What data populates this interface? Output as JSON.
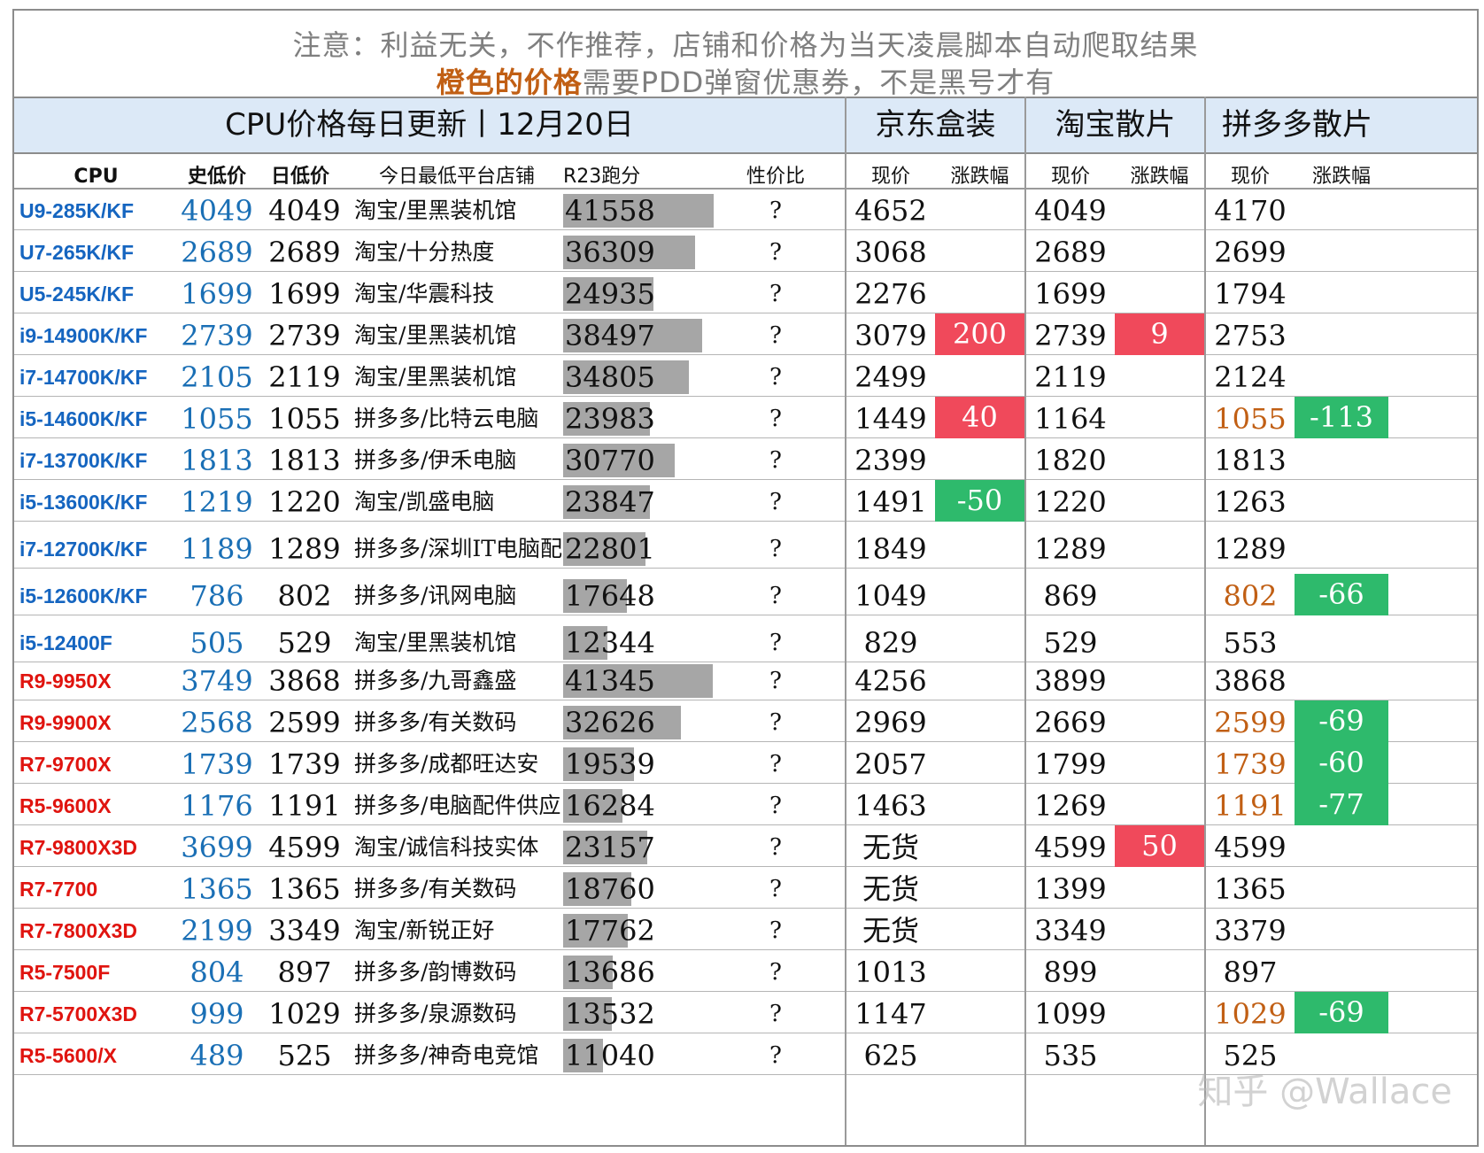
{
  "notice": {
    "line1": "注意：利益无关，不作推荐，店铺和价格为当天凌晨脚本自动爬取结果",
    "line2_orange": "橙色的价格",
    "line2_rest": "需要PDD弹窗优惠券，不是黑号才有"
  },
  "header": {
    "title": "CPU价格每日更新丨12月20日",
    "jd": "京东盒装",
    "taobao": "淘宝散片",
    "pdd": "拼多多散片"
  },
  "columns": {
    "cpu": "CPU",
    "hist_low": "史低价",
    "day_low": "日低价",
    "shop": "今日最低平台店铺",
    "r23": "R23跑分",
    "value": "性价比",
    "price": "现价",
    "change": "涨跌幅"
  },
  "colors": {
    "intel_blue": "#1565c0",
    "amd_red": "#e0140f",
    "hist_blue": "#1a6fb5",
    "up_red": "#f0495b",
    "down_green": "#2eba6c",
    "coupon_orange": "#c15f14",
    "header_band": "#dce9f7",
    "bar_gray": "#a6a6a6"
  },
  "r23_bar_max": 41558,
  "rows": [
    {
      "cpu": "U9-285K/KF",
      "brand": "intel",
      "hist": "4049",
      "day": "4049",
      "shop": "淘宝/里黑装机馆",
      "r23": "41558",
      "value": "?",
      "jd": "4652",
      "jd_chg": "",
      "tb": "4049",
      "tb_chg": "",
      "pdd": "4170",
      "pdd_orange": false,
      "pdd_chg": ""
    },
    {
      "cpu": "U7-265K/KF",
      "brand": "intel",
      "hist": "2689",
      "day": "2689",
      "shop": "淘宝/十分热度",
      "r23": "36309",
      "value": "?",
      "jd": "3068",
      "jd_chg": "",
      "tb": "2689",
      "tb_chg": "",
      "pdd": "2699",
      "pdd_orange": false,
      "pdd_chg": ""
    },
    {
      "cpu": "U5-245K/KF",
      "brand": "intel",
      "hist": "1699",
      "day": "1699",
      "shop": "淘宝/华震科技",
      "r23": "24935",
      "value": "?",
      "jd": "2276",
      "jd_chg": "",
      "tb": "1699",
      "tb_chg": "",
      "pdd": "1794",
      "pdd_orange": false,
      "pdd_chg": ""
    },
    {
      "cpu": "i9-14900K/KF",
      "brand": "intel",
      "hist": "2739",
      "day": "2739",
      "shop": "淘宝/里黑装机馆",
      "r23": "38497",
      "value": "?",
      "jd": "3079",
      "jd_chg": "200",
      "tb": "2739",
      "tb_chg": "9",
      "pdd": "2753",
      "pdd_orange": false,
      "pdd_chg": ""
    },
    {
      "cpu": "i7-14700K/KF",
      "brand": "intel",
      "hist": "2105",
      "day": "2119",
      "shop": "淘宝/里黑装机馆",
      "r23": "34805",
      "value": "?",
      "jd": "2499",
      "jd_chg": "",
      "tb": "2119",
      "tb_chg": "",
      "pdd": "2124",
      "pdd_orange": false,
      "pdd_chg": ""
    },
    {
      "cpu": "i5-14600K/KF",
      "brand": "intel",
      "hist": "1055",
      "day": "1055",
      "shop": "拼多多/比特云电脑",
      "r23": "23983",
      "value": "?",
      "jd": "1449",
      "jd_chg": "40",
      "tb": "1164",
      "tb_chg": "",
      "pdd": "1055",
      "pdd_orange": true,
      "pdd_chg": "-113"
    },
    {
      "cpu": "i7-13700K/KF",
      "brand": "intel",
      "hist": "1813",
      "day": "1813",
      "shop": "拼多多/伊禾电脑",
      "r23": "30770",
      "value": "?",
      "jd": "2399",
      "jd_chg": "",
      "tb": "1820",
      "tb_chg": "",
      "pdd": "1813",
      "pdd_orange": false,
      "pdd_chg": ""
    },
    {
      "cpu": "i5-13600K/KF",
      "brand": "intel",
      "hist": "1219",
      "day": "1220",
      "shop": "淘宝/凯盛电脑",
      "r23": "23847",
      "value": "?",
      "jd": "1491",
      "jd_chg": "-50",
      "tb": "1220",
      "tb_chg": "",
      "pdd": "1263",
      "pdd_orange": false,
      "pdd_chg": ""
    },
    {
      "cpu": "i7-12700K/KF",
      "brand": "intel",
      "hist": "1189",
      "day": "1289",
      "shop": "拼多多/深圳IT电脑配",
      "r23": "22801",
      "value": "?",
      "jd": "1849",
      "jd_chg": "",
      "tb": "1289",
      "tb_chg": "",
      "pdd": "1289",
      "pdd_orange": false,
      "pdd_chg": ""
    },
    {
      "cpu": "i5-12600K/KF",
      "brand": "intel",
      "hist": "786",
      "day": "802",
      "shop": "拼多多/讯网电脑",
      "r23": "17648",
      "value": "?",
      "jd": "1049",
      "jd_chg": "",
      "tb": "869",
      "tb_chg": "",
      "pdd": "802",
      "pdd_orange": true,
      "pdd_chg": "-66"
    },
    {
      "cpu": "i5-12400F",
      "brand": "intel",
      "hist": "505",
      "day": "529",
      "shop": "淘宝/里黑装机馆",
      "r23": "12344",
      "value": "?",
      "jd": "829",
      "jd_chg": "",
      "tb": "529",
      "tb_chg": "",
      "pdd": "553",
      "pdd_orange": false,
      "pdd_chg": ""
    },
    {
      "cpu": "R9-9950X",
      "brand": "amd",
      "hist": "3749",
      "day": "3868",
      "shop": "拼多多/九哥鑫盛",
      "r23": "41345",
      "value": "?",
      "jd": "4256",
      "jd_chg": "",
      "tb": "3899",
      "tb_chg": "",
      "pdd": "3868",
      "pdd_orange": false,
      "pdd_chg": ""
    },
    {
      "cpu": "R9-9900X",
      "brand": "amd",
      "hist": "2568",
      "day": "2599",
      "shop": "拼多多/有关数码",
      "r23": "32626",
      "value": "?",
      "jd": "2969",
      "jd_chg": "",
      "tb": "2669",
      "tb_chg": "",
      "pdd": "2599",
      "pdd_orange": true,
      "pdd_chg": "-69"
    },
    {
      "cpu": "R7-9700X",
      "brand": "amd",
      "hist": "1739",
      "day": "1739",
      "shop": "拼多多/成都旺达安",
      "r23": "19539",
      "value": "?",
      "jd": "2057",
      "jd_chg": "",
      "tb": "1799",
      "tb_chg": "",
      "pdd": "1739",
      "pdd_orange": true,
      "pdd_chg": "-60"
    },
    {
      "cpu": "R5-9600X",
      "brand": "amd",
      "hist": "1176",
      "day": "1191",
      "shop": "拼多多/电脑配件供应",
      "r23": "16284",
      "value": "?",
      "jd": "1463",
      "jd_chg": "",
      "tb": "1269",
      "tb_chg": "",
      "pdd": "1191",
      "pdd_orange": true,
      "pdd_chg": "-77"
    },
    {
      "cpu": "R7-9800X3D",
      "brand": "amd",
      "hist": "3699",
      "day": "4599",
      "shop": "淘宝/诚信科技实体",
      "r23": "23157",
      "value": "?",
      "jd": "无货",
      "jd_chg": "",
      "tb": "4599",
      "tb_chg": "50",
      "pdd": "4599",
      "pdd_orange": false,
      "pdd_chg": ""
    },
    {
      "cpu": "R7-7700",
      "brand": "amd",
      "hist": "1365",
      "day": "1365",
      "shop": "拼多多/有关数码",
      "r23": "18760",
      "value": "?",
      "jd": "无货",
      "jd_chg": "",
      "tb": "1399",
      "tb_chg": "",
      "pdd": "1365",
      "pdd_orange": false,
      "pdd_chg": ""
    },
    {
      "cpu": "R7-7800X3D",
      "brand": "amd",
      "hist": "2199",
      "day": "3349",
      "shop": "淘宝/新锐正好",
      "r23": "17762",
      "value": "?",
      "jd": "无货",
      "jd_chg": "",
      "tb": "3349",
      "tb_chg": "",
      "pdd": "3379",
      "pdd_orange": false,
      "pdd_chg": ""
    },
    {
      "cpu": "R5-7500F",
      "brand": "amd",
      "hist": "804",
      "day": "897",
      "shop": "拼多多/韵博数码",
      "r23": "13686",
      "value": "?",
      "jd": "1013",
      "jd_chg": "",
      "tb": "899",
      "tb_chg": "",
      "pdd": "897",
      "pdd_orange": false,
      "pdd_chg": ""
    },
    {
      "cpu": "R7-5700X3D",
      "brand": "amd",
      "hist": "999",
      "day": "1029",
      "shop": "拼多多/泉源数码",
      "r23": "13532",
      "value": "?",
      "jd": "1147",
      "jd_chg": "",
      "tb": "1099",
      "tb_chg": "",
      "pdd": "1029",
      "pdd_orange": true,
      "pdd_chg": "-69"
    },
    {
      "cpu": "R5-5600/X",
      "brand": "amd",
      "hist": "489",
      "day": "525",
      "shop": "拼多多/神奇电竞馆",
      "r23": "11040",
      "value": "?",
      "jd": "625",
      "jd_chg": "",
      "tb": "535",
      "tb_chg": "",
      "pdd": "525",
      "pdd_orange": false,
      "pdd_chg": ""
    }
  ],
  "watermark": "知乎 @Wallace"
}
